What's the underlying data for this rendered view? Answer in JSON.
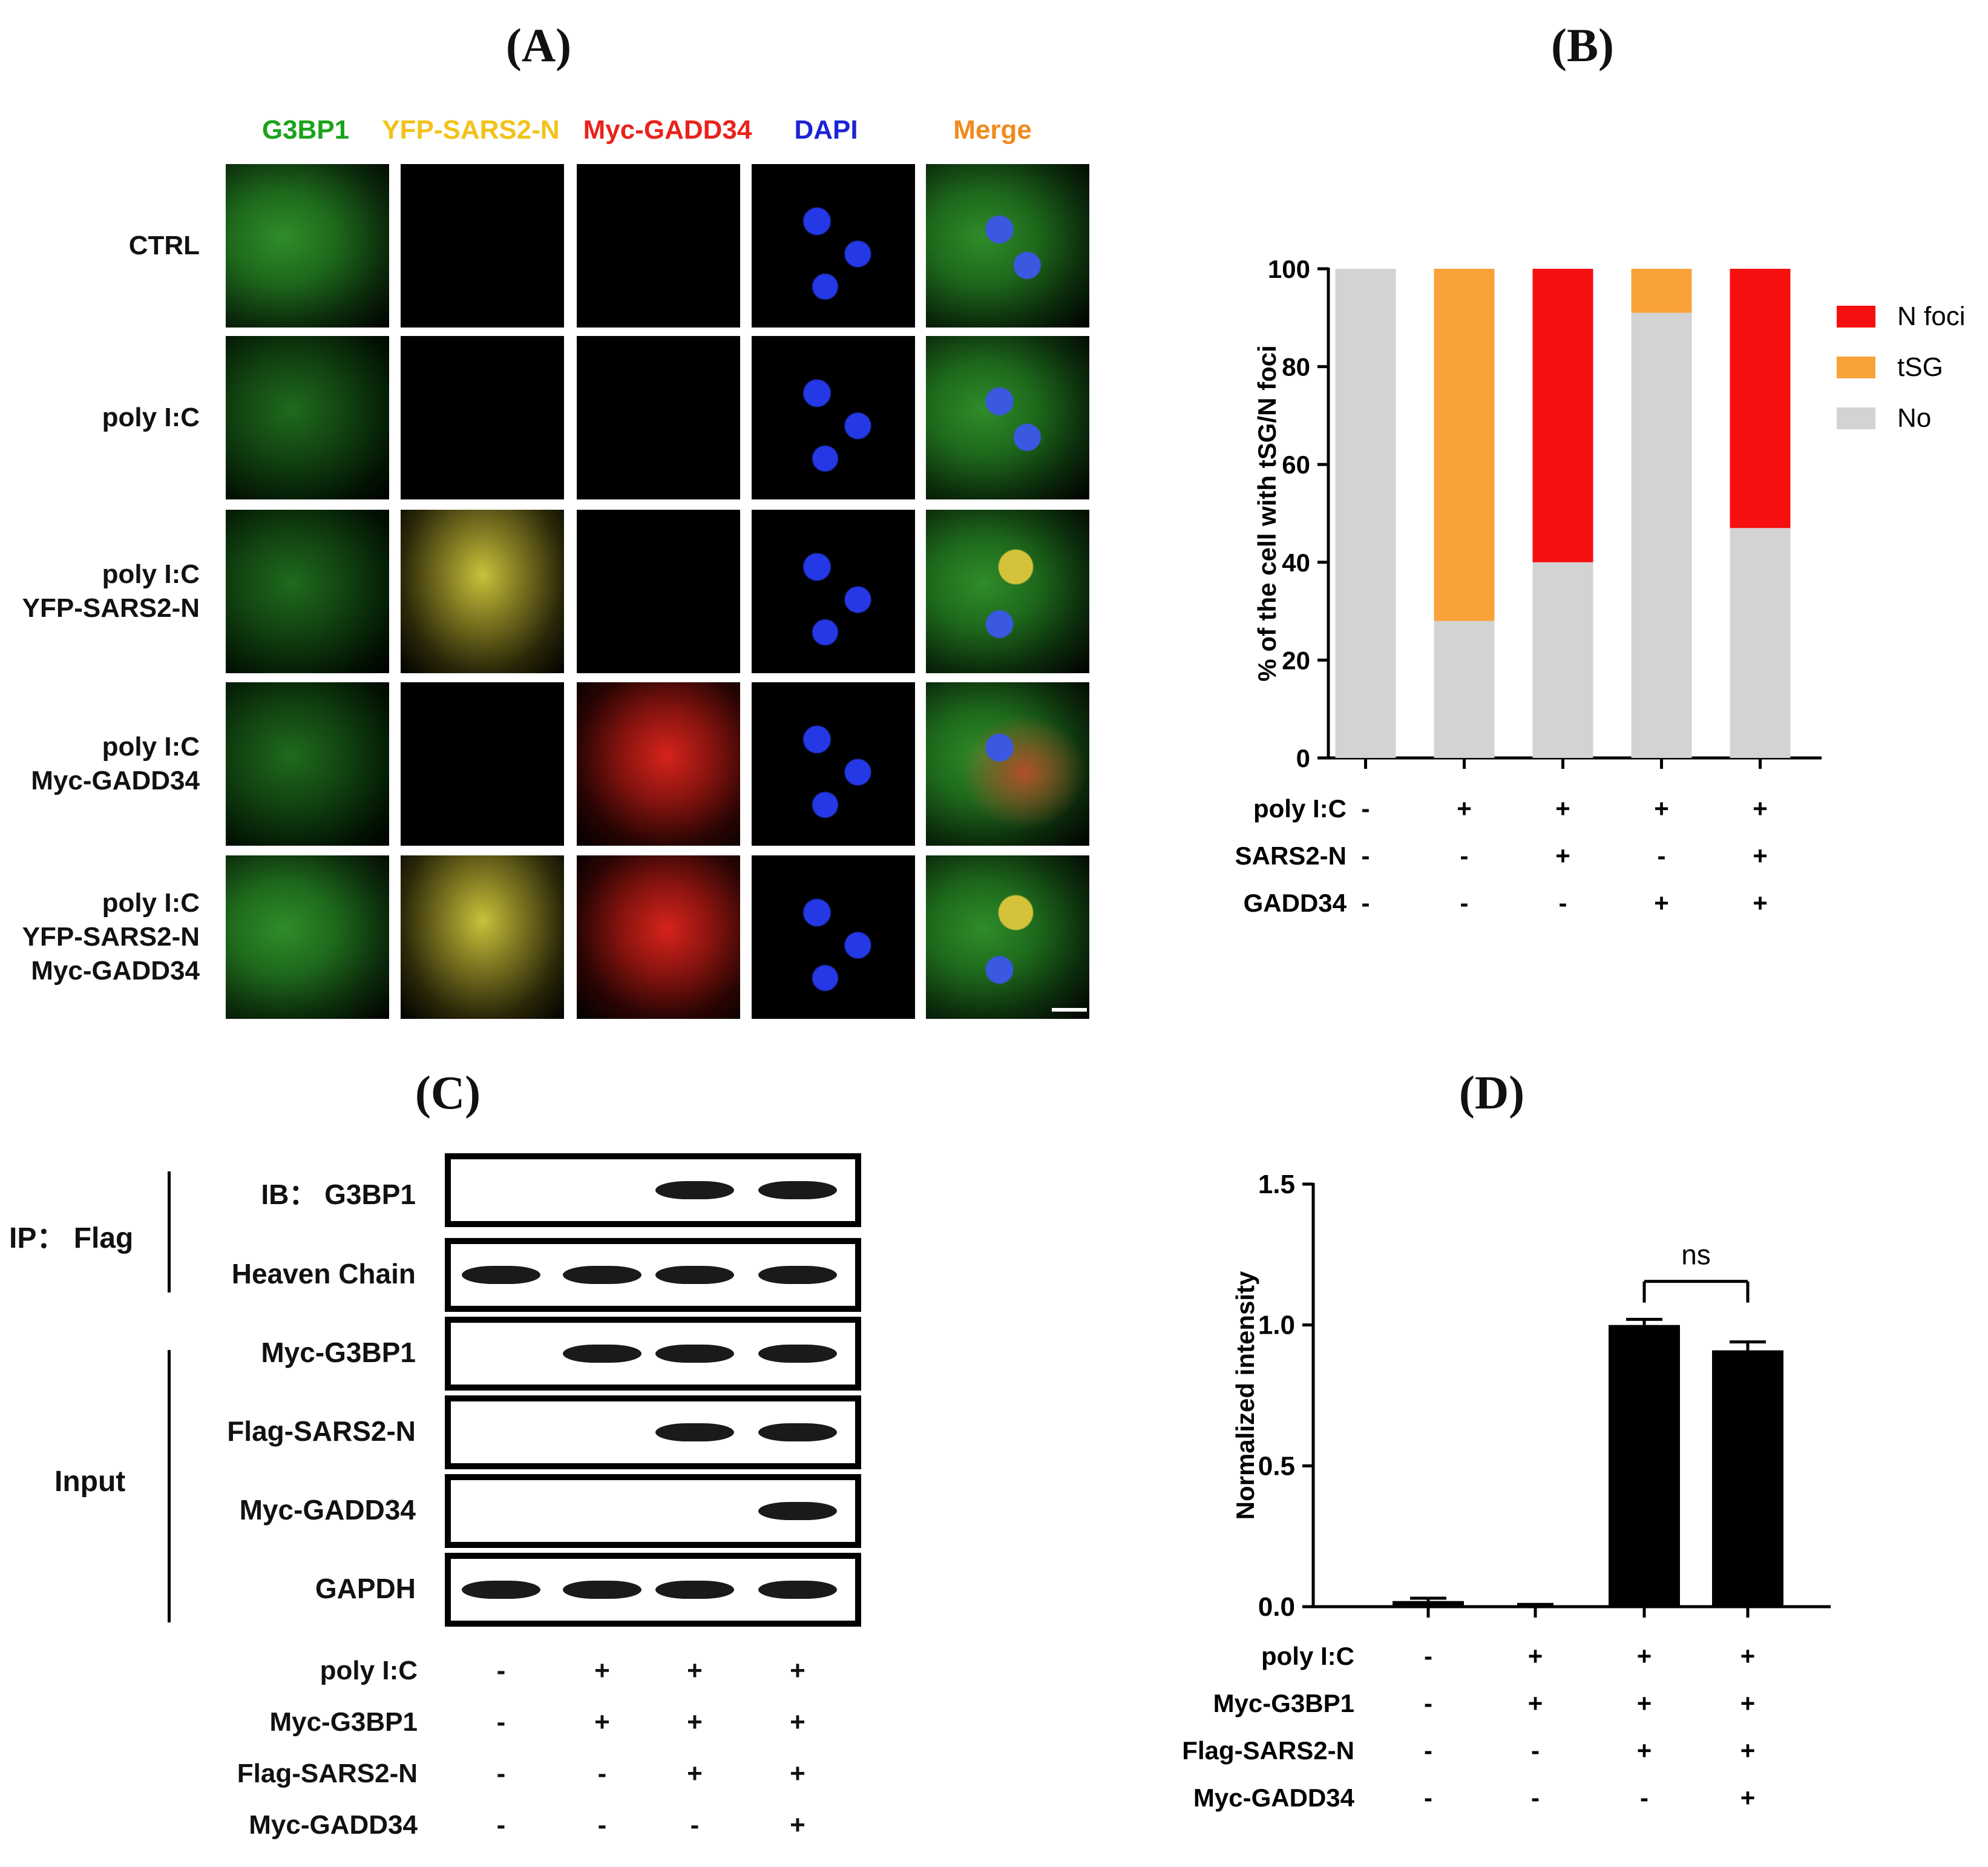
{
  "panels": {
    "a": "(A)",
    "b": "(B)",
    "c": "(C)",
    "d": "(D)"
  },
  "panel_a": {
    "channels": [
      {
        "label": "G3BP1",
        "color": "#1aa31a"
      },
      {
        "label": "YFP-SARS2-N",
        "color": "#f2c21b"
      },
      {
        "label": "Myc-GADD34",
        "color": "#e8231c"
      },
      {
        "label": "DAPI",
        "color": "#1c23d6"
      },
      {
        "label": "Merge",
        "color": "#f08a1c"
      }
    ],
    "rows": [
      {
        "lines": [
          "CTRL"
        ]
      },
      {
        "lines": [
          "poly I:C"
        ]
      },
      {
        "lines": [
          "poly I:C",
          "YFP-SARS2-N"
        ]
      },
      {
        "lines": [
          "poly I:C",
          "Myc-GADD34"
        ]
      },
      {
        "lines": [
          "poly I:C",
          "YFP-SARS2-N",
          "Myc-GADD34"
        ]
      }
    ]
  },
  "chart_data": [
    {
      "type": "bar",
      "stacked": true,
      "ylabel": "% of the cell with tSG/N foci",
      "ylim": [
        0,
        100
      ],
      "yticks": [
        0,
        20,
        40,
        60,
        80,
        100
      ],
      "legend": "right",
      "categories": [
        "1",
        "2",
        "3",
        "4",
        "5"
      ],
      "series": [
        {
          "name": "No",
          "color": "#d3d3d3",
          "values": [
            100,
            28,
            40,
            91,
            47
          ]
        },
        {
          "name": "tSG",
          "color": "#f9a23a",
          "values": [
            0,
            72,
            0,
            9,
            0
          ]
        },
        {
          "name": "N foci",
          "color": "#f50f0f",
          "values": [
            0,
            0,
            60,
            0,
            53
          ]
        }
      ],
      "conditions": [
        {
          "label": "poly I:C",
          "values": [
            "-",
            "+",
            "+",
            "+",
            "+"
          ]
        },
        {
          "label": "SARS2-N",
          "values": [
            "-",
            "-",
            "+",
            "-",
            "+"
          ]
        },
        {
          "label": "GADD34",
          "values": [
            "-",
            "-",
            "-",
            "+",
            "+"
          ]
        }
      ]
    },
    {
      "type": "bar",
      "ylabel": "Normalized intensity",
      "ylim": [
        0,
        1.5
      ],
      "yticks": [
        "0.0",
        "0.5",
        "1.0",
        "1.5"
      ],
      "categories": [
        "1",
        "2",
        "3",
        "4"
      ],
      "values": [
        0.02,
        0.005,
        1.0,
        0.91
      ],
      "errors": [
        0.01,
        0.003,
        0.02,
        0.03
      ],
      "color": "#000000",
      "annotation": "ns",
      "conditions": [
        {
          "label": "poly I:C",
          "values": [
            "-",
            "+",
            "+",
            "+"
          ]
        },
        {
          "label": "Myc-G3BP1",
          "values": [
            "-",
            "+",
            "+",
            "+"
          ]
        },
        {
          "label": "Flag-SARS2-N",
          "values": [
            "-",
            "-",
            "+",
            "+"
          ]
        },
        {
          "label": "Myc-GADD34",
          "values": [
            "-",
            "-",
            "-",
            "+"
          ]
        }
      ]
    }
  ],
  "panel_c": {
    "ip_label": "IP： Flag",
    "input_label": "Input",
    "blots": [
      {
        "label": "IB：  G3BP1",
        "bands": [
          0,
          0,
          1,
          1
        ]
      },
      {
        "label": "Heaven Chain",
        "bands": [
          1,
          1,
          1,
          1
        ]
      },
      {
        "label": "Myc-G3BP1",
        "bands": [
          0,
          1,
          1,
          1
        ]
      },
      {
        "label": "Flag-SARS2-N",
        "bands": [
          0,
          0,
          1,
          1
        ]
      },
      {
        "label": "Myc-GADD34",
        "bands": [
          0,
          0,
          0,
          1
        ]
      },
      {
        "label": "GAPDH",
        "bands": [
          1,
          1,
          1,
          1
        ]
      }
    ],
    "conditions": [
      {
        "label": "poly I:C",
        "values": [
          "-",
          "+",
          "+",
          "+"
        ]
      },
      {
        "label": "Myc-G3BP1",
        "values": [
          "-",
          "+",
          "+",
          "+"
        ]
      },
      {
        "label": "Flag-SARS2-N",
        "values": [
          "-",
          "-",
          "+",
          "+"
        ]
      },
      {
        "label": "Myc-GADD34",
        "values": [
          "-",
          "-",
          "-",
          "+"
        ]
      }
    ]
  }
}
